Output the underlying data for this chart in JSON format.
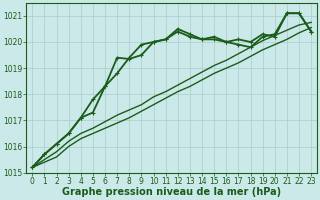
{
  "xlabel": "Graphe pression niveau de la mer (hPa)",
  "ylabel": "",
  "background_color": "#cce9e9",
  "grid_color": "#aacccc",
  "line_color": "#1a5c1a",
  "xlim": [
    -0.5,
    23.5
  ],
  "ylim": [
    1015.0,
    1021.5
  ],
  "yticks": [
    1015,
    1016,
    1017,
    1018,
    1019,
    1020,
    1021
  ],
  "xticks": [
    0,
    1,
    2,
    3,
    4,
    5,
    6,
    7,
    8,
    9,
    10,
    11,
    12,
    13,
    14,
    15,
    16,
    17,
    18,
    19,
    20,
    21,
    22,
    23
  ],
  "series": [
    {
      "x": [
        0,
        1,
        2,
        3,
        4,
        5,
        6,
        7,
        8,
        9,
        10,
        11,
        12,
        13,
        14,
        15,
        16,
        17,
        18,
        19,
        20,
        21,
        22,
        23
      ],
      "y": [
        1015.2,
        1015.7,
        1016.1,
        1016.5,
        1017.1,
        1017.8,
        1018.3,
        1018.8,
        1019.4,
        1019.9,
        1020.0,
        1020.1,
        1020.4,
        1020.2,
        1020.1,
        1020.1,
        1020.0,
        1019.9,
        1019.8,
        1020.2,
        1020.3,
        1021.1,
        1021.1,
        1020.4
      ],
      "marker": "+",
      "markersize": 3,
      "linewidth": 1.3
    },
    {
      "x": [
        0,
        1,
        2,
        3,
        4,
        5,
        6,
        7,
        8,
        9,
        10,
        11,
        12,
        13,
        14,
        15,
        16,
        17,
        18,
        19,
        20,
        21,
        22,
        23
      ],
      "y": [
        1015.2,
        1015.7,
        1016.1,
        1016.5,
        1017.1,
        1017.3,
        1018.3,
        1019.4,
        1019.35,
        1019.5,
        1020.0,
        1020.1,
        1020.5,
        1020.3,
        1020.1,
        1020.2,
        1020.0,
        1020.1,
        1020.0,
        1020.3,
        1020.2,
        1021.1,
        1021.1,
        1020.4
      ],
      "marker": "+",
      "markersize": 3,
      "linewidth": 1.3
    },
    {
      "x": [
        0,
        1,
        2,
        3,
        4,
        5,
        6,
        7,
        8,
        9,
        10,
        11,
        12,
        13,
        14,
        15,
        16,
        17,
        18,
        19,
        20,
        21,
        22,
        23
      ],
      "y": [
        1015.2,
        1015.4,
        1015.6,
        1016.0,
        1016.3,
        1016.5,
        1016.7,
        1016.9,
        1017.1,
        1017.35,
        1017.6,
        1017.85,
        1018.1,
        1018.3,
        1018.55,
        1018.8,
        1019.0,
        1019.2,
        1019.45,
        1019.7,
        1019.9,
        1020.1,
        1020.35,
        1020.55
      ],
      "marker": null,
      "markersize": 0,
      "linewidth": 1.0
    },
    {
      "x": [
        0,
        1,
        2,
        3,
        4,
        5,
        6,
        7,
        8,
        9,
        10,
        11,
        12,
        13,
        14,
        15,
        16,
        17,
        18,
        19,
        20,
        21,
        22,
        23
      ],
      "y": [
        1015.2,
        1015.5,
        1015.8,
        1016.2,
        1016.5,
        1016.7,
        1016.95,
        1017.2,
        1017.4,
        1017.6,
        1017.9,
        1018.1,
        1018.35,
        1018.6,
        1018.85,
        1019.1,
        1019.3,
        1019.55,
        1019.8,
        1020.05,
        1020.25,
        1020.45,
        1020.65,
        1020.75
      ],
      "marker": null,
      "markersize": 0,
      "linewidth": 1.0
    }
  ],
  "xlabel_fontsize": 7,
  "xlabel_fontweight": "bold",
  "xlabel_color": "#1a5c1a",
  "tick_fontsize": 5.5,
  "tick_color": "#1a5c1a"
}
